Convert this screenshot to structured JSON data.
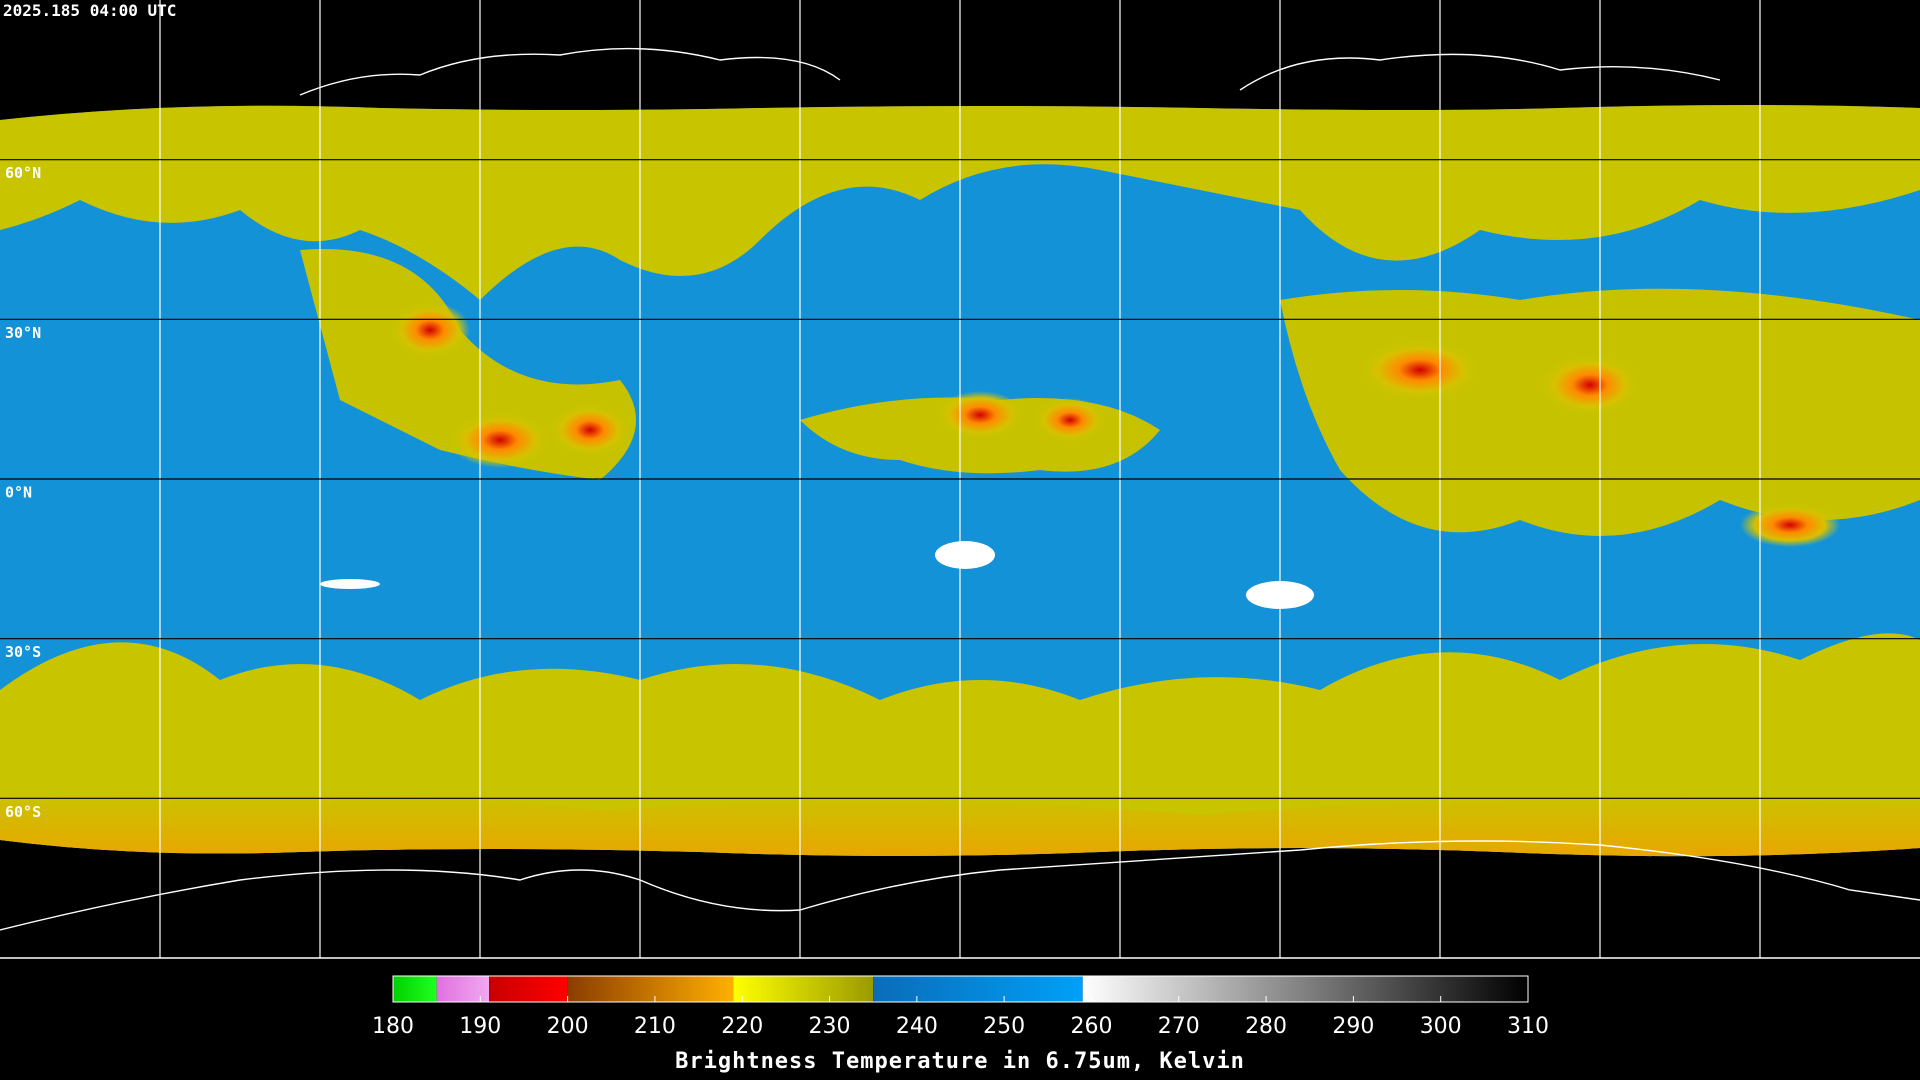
{
  "header": {
    "title": "2025.185 04:00 UTC"
  },
  "map": {
    "xlim": [
      -180,
      180
    ],
    "ylim": [
      -90,
      90
    ],
    "lon_grid": [
      -150,
      -120,
      -90,
      -60,
      -30,
      0,
      30,
      60,
      90,
      120,
      150
    ],
    "lat_grid": [
      {
        "value": 60,
        "label": "60°N"
      },
      {
        "value": 30,
        "label": "30°N"
      },
      {
        "value": 0,
        "label": "0°N"
      },
      {
        "value": -30,
        "label": "30°S"
      },
      {
        "value": -60,
        "label": "60°S"
      }
    ]
  },
  "colorbar": {
    "range": [
      180,
      310
    ],
    "ticks": [
      180,
      190,
      200,
      210,
      220,
      230,
      240,
      250,
      260,
      270,
      280,
      290,
      300,
      310
    ],
    "label": "Brightness Temperature in 6.75um, Kelvin",
    "segments": [
      {
        "from": 180,
        "to": 185,
        "colors": [
          "#00d000",
          "#20ff20"
        ]
      },
      {
        "from": 185,
        "to": 191,
        "colors": [
          "#e070e0",
          "#f0a8f0"
        ]
      },
      {
        "from": 191,
        "to": 200,
        "colors": [
          "#c80000",
          "#ff0000"
        ]
      },
      {
        "from": 200,
        "to": 219,
        "colors": [
          "#8a3c00",
          "#ffb000"
        ]
      },
      {
        "from": 219,
        "to": 235,
        "colors": [
          "#ffff00",
          "#9a9a00"
        ]
      },
      {
        "from": 235,
        "to": 259,
        "colors": [
          "#0a6cb8",
          "#00a0f8"
        ]
      },
      {
        "from": 259,
        "to": 310,
        "colors": [
          "#ffffff",
          "#000000"
        ]
      }
    ]
  }
}
